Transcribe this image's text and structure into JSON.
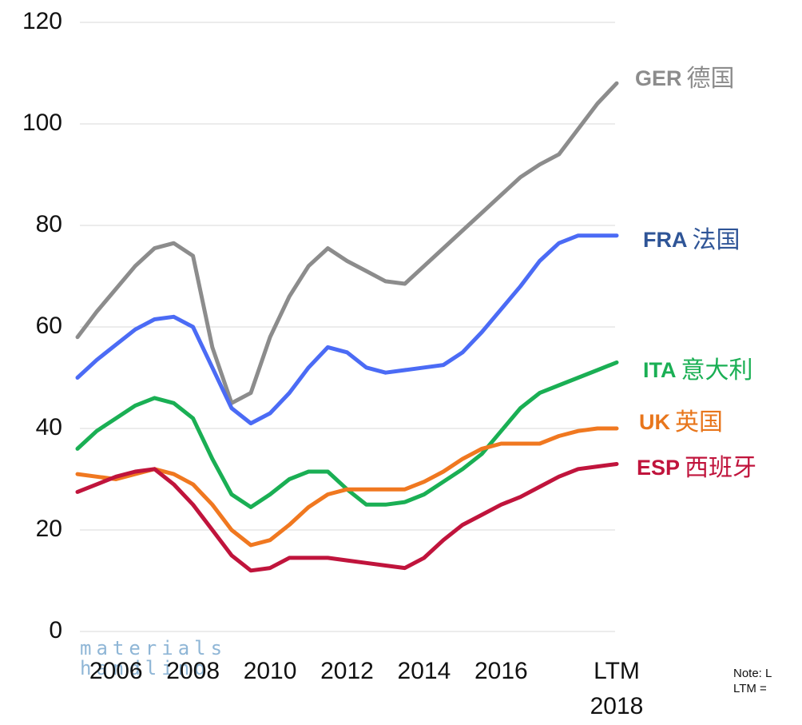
{
  "chart_data": {
    "type": "line",
    "categories": [
      null,
      null,
      "2006",
      null,
      null,
      null,
      "2008",
      null,
      null,
      null,
      "2010",
      null,
      null,
      null,
      "2012",
      null,
      null,
      null,
      "2014",
      null,
      null,
      null,
      "2016",
      null,
      null,
      null,
      null,
      null,
      "LTM 2018"
    ],
    "ylim": [
      0,
      120
    ],
    "yticks": [
      0,
      20,
      40,
      60,
      80,
      100,
      120
    ],
    "grid": true,
    "series": [
      {
        "name": "GER",
        "local_name": "德国",
        "color": "#8c8c8c",
        "label_color": "#8c8c8c",
        "values": [
          58,
          63,
          67.5,
          72,
          75.5,
          76.5,
          74,
          56,
          45,
          47,
          58,
          66,
          72,
          75.5,
          73,
          71,
          69,
          68.5,
          72,
          75.5,
          79,
          82.5,
          86,
          89.5,
          92,
          94,
          99,
          104,
          108
        ]
      },
      {
        "name": "FRA",
        "local_name": "法国",
        "color": "#4b6bf5",
        "label_color": "#2f5597",
        "values": [
          50,
          53.5,
          56.5,
          59.5,
          61.5,
          62,
          60,
          52,
          44,
          41,
          43,
          47,
          52,
          56,
          55,
          52,
          51,
          51.5,
          52,
          52.5,
          55,
          59,
          63.5,
          68,
          73,
          76.5,
          78,
          78,
          78
        ]
      },
      {
        "name": "ITA",
        "local_name": "意大利",
        "color": "#1aaf54",
        "label_color": "#1aaf54",
        "values": [
          36,
          39.5,
          42,
          44.5,
          46,
          45,
          42,
          34,
          27,
          24.5,
          27,
          30,
          31.5,
          31.5,
          28,
          25,
          25,
          25.5,
          27,
          29.5,
          32,
          35,
          39.5,
          44,
          47,
          48.5,
          50,
          51.5,
          53
        ]
      },
      {
        "name": "UK",
        "local_name": "英国",
        "color": "#f07820",
        "label_color": "#e8761c",
        "values": [
          31,
          30.5,
          30,
          31,
          32,
          31,
          29,
          25,
          20,
          17,
          18,
          21,
          24.5,
          27,
          28,
          28,
          28,
          28,
          29.5,
          31.5,
          34,
          36,
          37,
          37,
          37,
          38.5,
          39.5,
          40,
          40
        ]
      },
      {
        "name": "ESP",
        "local_name": "西班牙",
        "color": "#c0143c",
        "label_color": "#c0143c",
        "values": [
          27.5,
          29,
          30.5,
          31.5,
          32,
          29,
          25,
          20,
          15,
          12,
          12.5,
          14.5,
          14.5,
          14.5,
          14,
          13.5,
          13,
          12.5,
          14.5,
          18,
          21,
          23,
          25,
          26.5,
          28.5,
          30.5,
          32,
          32.5,
          33
        ]
      }
    ],
    "logo": [
      "materials",
      "handling"
    ],
    "notes": [
      "Note: L",
      "LTM ="
    ]
  }
}
